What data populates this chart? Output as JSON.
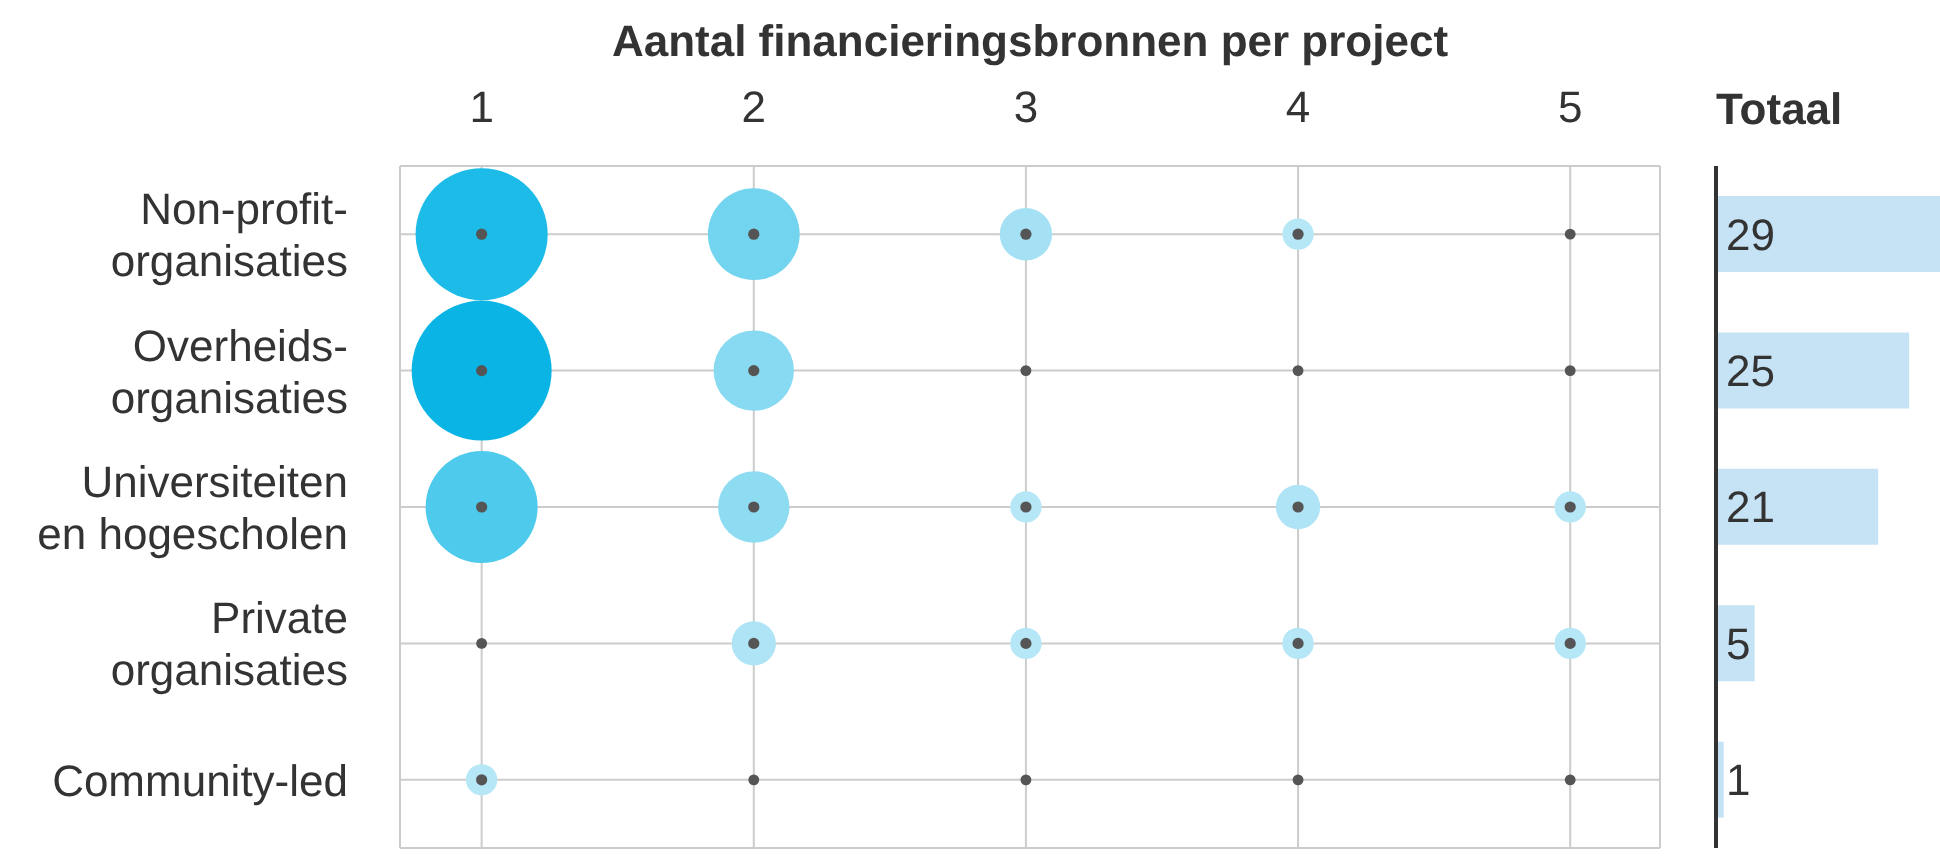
{
  "chart_data": [
    {
      "type": "bubble",
      "xlabel": "Aantal financieringsbronnen per project",
      "orientation": "horizontal",
      "categories": [
        "Non-profit-organisaties",
        "Overheids-organisaties",
        "Universiteiten en hogescholen",
        "Private organisaties",
        "Community-led"
      ],
      "xlim": [
        0.7,
        5.33
      ],
      "xticks": [
        1,
        2,
        3,
        4,
        5
      ],
      "grid": true,
      "series": [
        {
          "values": [
            1,
            1,
            1,
            1,
            1
          ],
          "sizes": [
            0.89,
            1,
            0.64,
            0.006,
            0.05
          ],
          "colors": [
            "#1dbce8",
            "#0ab5e6",
            "#4dcaec",
            "#555555",
            "#b5e7f7"
          ]
        },
        {
          "values": [
            2,
            2,
            2,
            2,
            2
          ],
          "sizes": [
            0.43,
            0.33,
            0.26,
            0.1,
            0.006
          ],
          "colors": [
            "#73d4ef",
            "#87daf1",
            "#8edcf2",
            "#aee4f5",
            "#555555"
          ]
        },
        {
          "values": [
            3,
            3,
            3,
            3,
            3
          ],
          "sizes": [
            0.14,
            0.006,
            0.05,
            0.05,
            0.006
          ],
          "colors": [
            "#a5e1f4",
            "#555555",
            "#b5e7f7",
            "#b5e7f7",
            "#555555"
          ]
        },
        {
          "values": [
            4,
            4,
            4,
            4,
            4
          ],
          "sizes": [
            0.05,
            0.006,
            0.1,
            0.05,
            0.006
          ],
          "colors": [
            "#b5e7f7",
            "#555555",
            "#aee4f5",
            "#b5e7f7",
            "#555555"
          ]
        },
        {
          "values": [
            5,
            5,
            5,
            5,
            5
          ],
          "sizes": [
            0.006,
            0.006,
            0.05,
            0.05,
            0.006
          ],
          "colors": [
            "#555555",
            "#555555",
            "#b5e7f7",
            "#b5e7f7",
            "#555555"
          ]
        }
      ]
    },
    {
      "type": "bar",
      "title": "Totaal",
      "orientation": "horizontal",
      "categories": [
        null,
        null,
        null,
        null,
        null
      ],
      "values": [
        29,
        25,
        21,
        5,
        1
      ],
      "color": "#c6e2f5",
      "data_labels": true
    }
  ]
}
